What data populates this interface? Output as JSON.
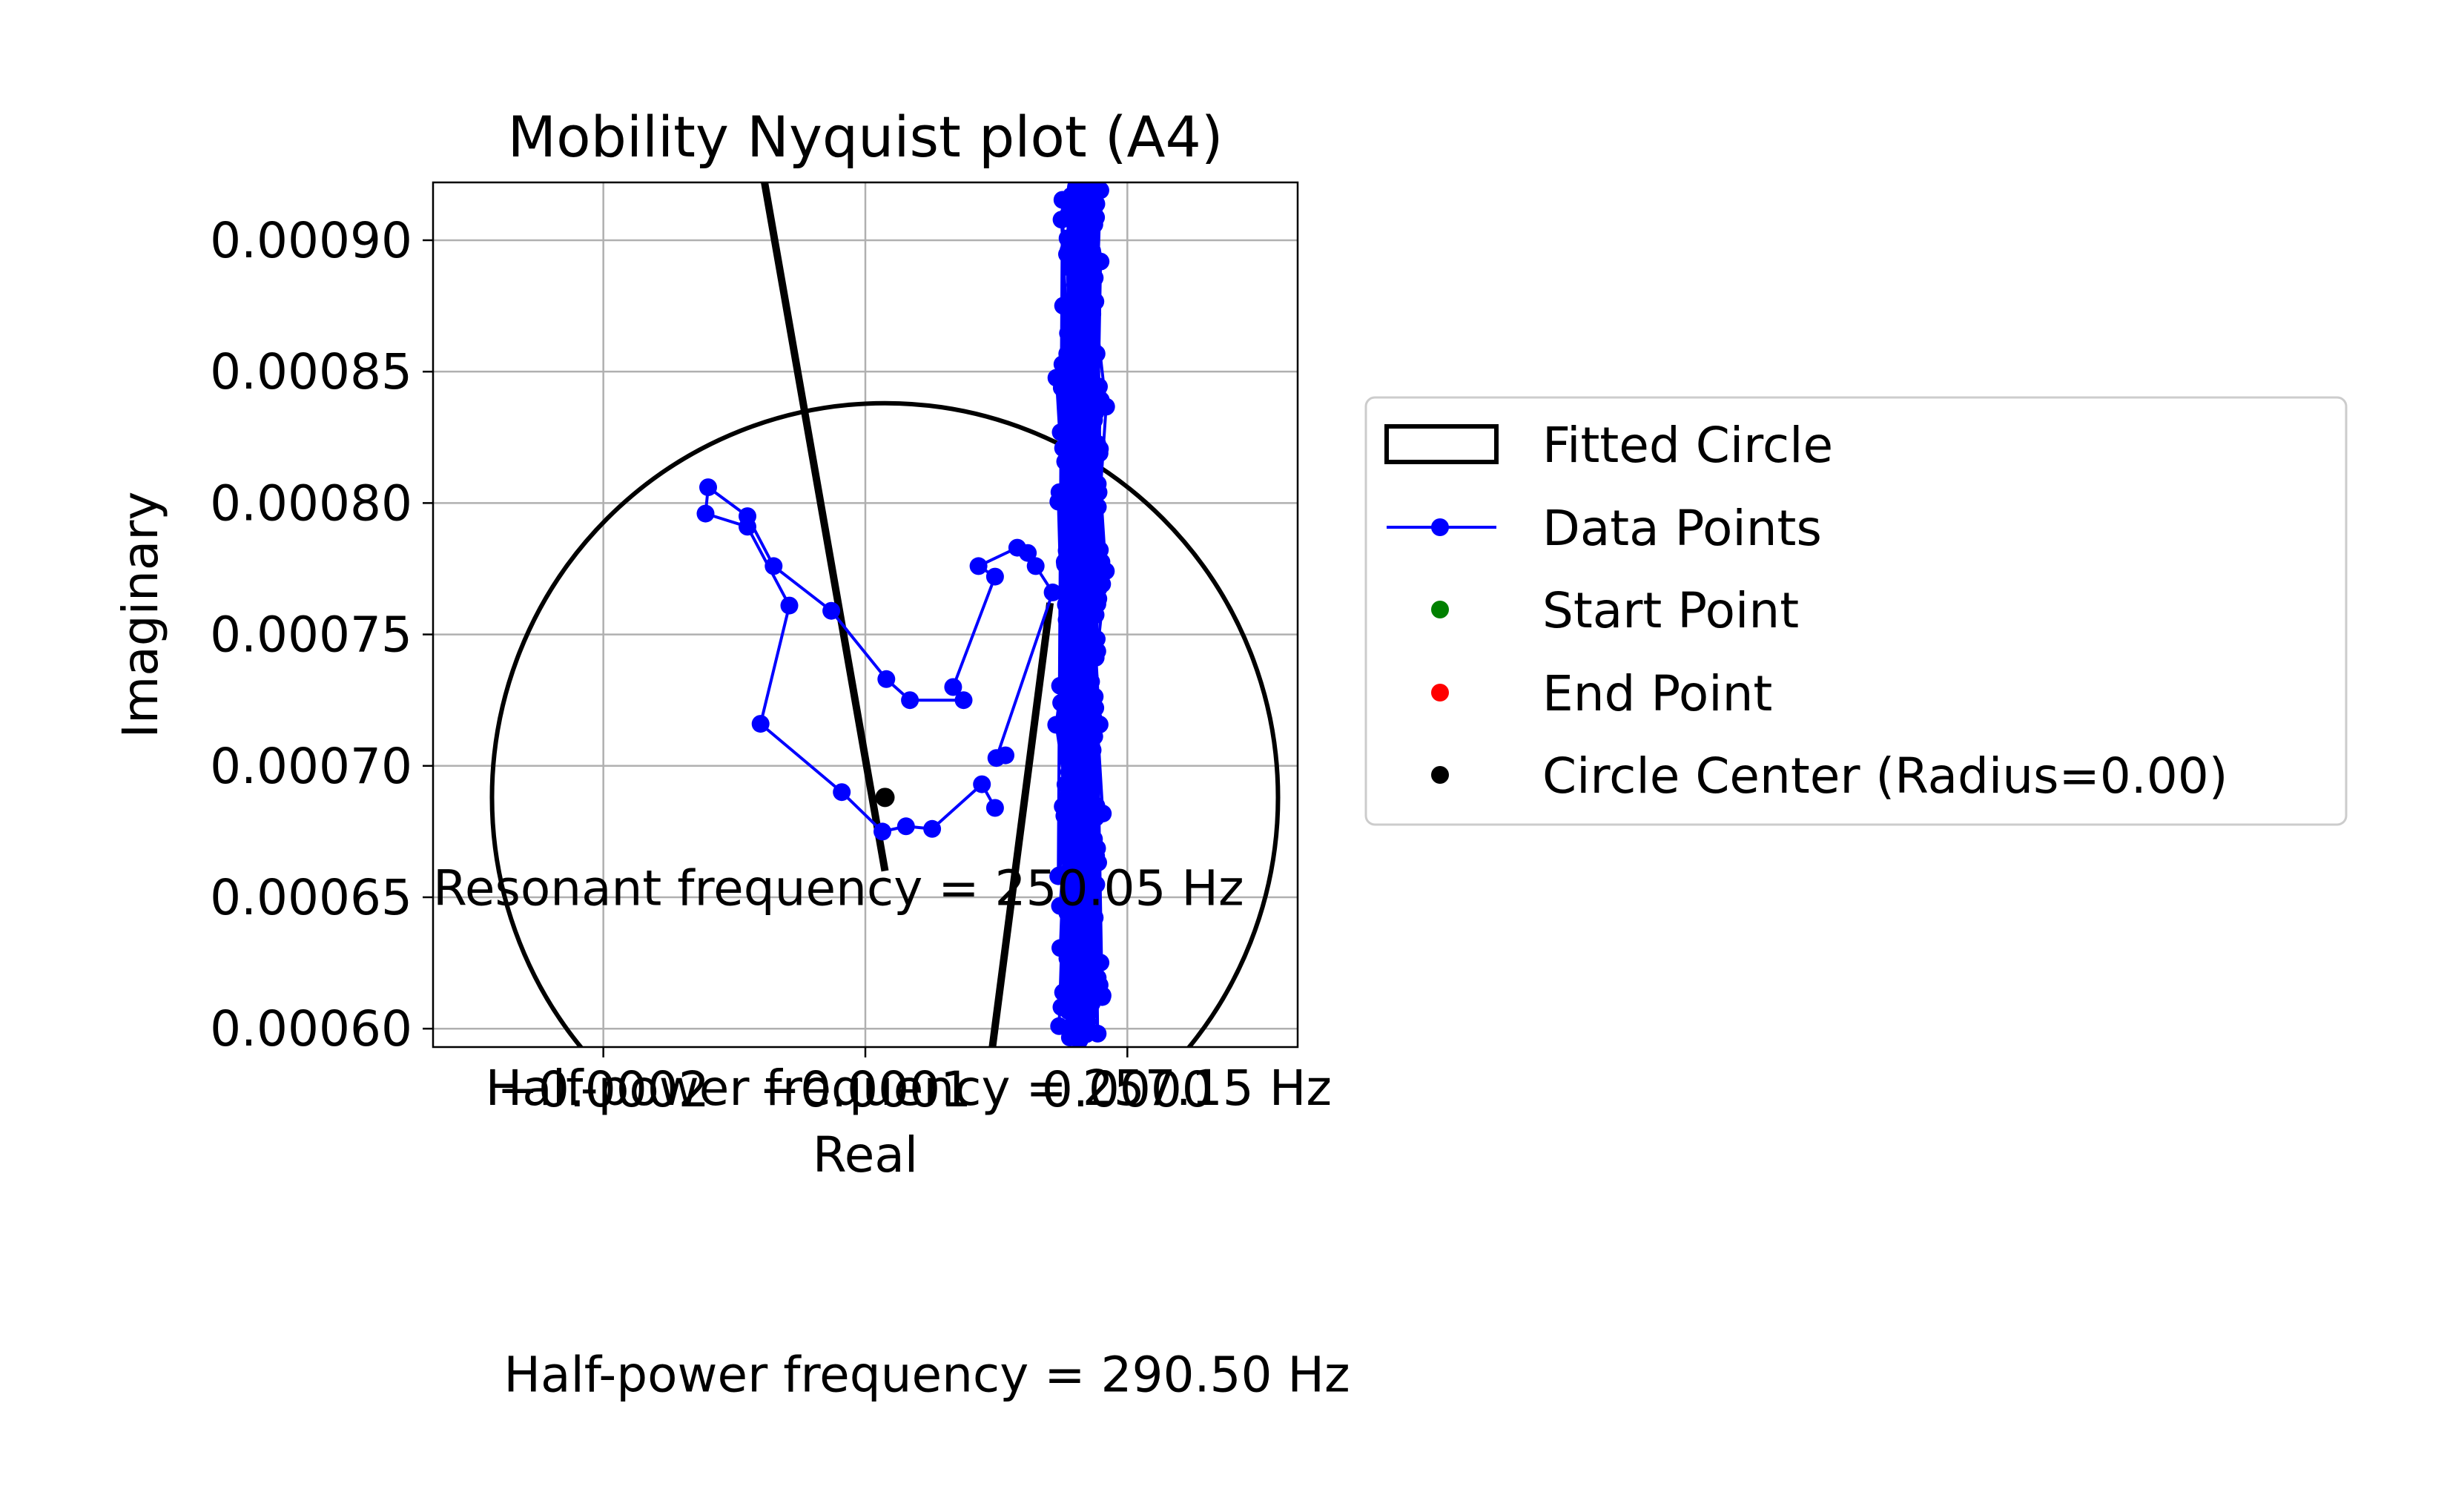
{
  "chart_data": {
    "type": "scatter",
    "title": "Mobility Nyquist plot (A4)",
    "xlabel": "Real",
    "ylabel": "Imaginary",
    "xlim": [
      -0.000265,
      6.5e-05
    ],
    "ylim": [
      0.000593,
      0.000922
    ],
    "x_ticks": [
      -0.0002,
      -0.0001,
      0.0
    ],
    "x_tick_labels": [
      "−0.0002",
      "−0.0001",
      "0.0000"
    ],
    "y_ticks": [
      0.0006,
      0.00065,
      0.0007,
      0.00075,
      0.0008,
      0.00085,
      0.0009
    ],
    "y_tick_labels": [
      "0.00060",
      "0.00065",
      "0.00070",
      "0.00075",
      "0.00080",
      "0.00085",
      "0.00090"
    ],
    "grid": true,
    "legend_position": "outside-right",
    "legend": [
      {
        "label": "Fitted Circle",
        "kind": "patch"
      },
      {
        "label": "Data Points",
        "kind": "line-marker"
      },
      {
        "label": "Start Point",
        "kind": "marker"
      },
      {
        "label": "End Point",
        "kind": "marker"
      },
      {
        "label": "Circle Center (Radius=0.00)",
        "kind": "marker"
      }
    ],
    "colors": {
      "data": "#0000ff",
      "circle": "#000000",
      "start": "#008000",
      "end": "#ff0000",
      "center": "#000000",
      "grid": "#b0b0b0"
    },
    "circle": {
      "center": [
        -9.25e-05,
        0.000688
      ],
      "radius": 0.00015
    },
    "center_point": [
      -9.25e-05,
      0.000688
    ],
    "lines": [
      {
        "x": [
          -0.000139,
          -9.25e-05
        ],
        "y": [
          0.000925,
          0.00066
        ]
      },
      {
        "x": [
          -5.15e-05,
          -2.95e-05
        ],
        "y": [
          0.000593,
          0.000762
        ]
      }
    ],
    "loop_series": {
      "name": "Data Points",
      "x": [
        -5.05e-05,
        -5.55e-05,
        -7.45e-05,
        -8.45e-05,
        -9.35e-05,
        -0.000109,
        -0.00014,
        -0.000129,
        -0.000145,
        -0.000161,
        -0.00016,
        -0.000145,
        -0.000135,
        -0.000113,
        -9.2e-05,
        -8.3e-05,
        -6.25e-05,
        -6.65e-05,
        -5.05e-05,
        -5.68e-05,
        -4.2e-05,
        -3.8e-05,
        -3.5e-05,
        -2.85e-05,
        -5e-05,
        -4.65e-05
      ],
      "y": [
        0.000684,
        0.000693,
        0.000676,
        0.000677,
        0.000675,
        0.00069,
        0.000716,
        0.000761,
        0.000791,
        0.000796,
        0.000806,
        0.000795,
        0.000776,
        0.000759,
        0.000733,
        0.000725,
        0.000725,
        0.00073,
        0.000772,
        0.000776,
        0.000783,
        0.000781,
        0.000776,
        0.000766,
        0.000703,
        0.000704
      ]
    },
    "cloud_series": {
      "name": "Data Points",
      "x_center": -1.75e-05,
      "x_spread": 1.1e-05,
      "y_range": [
        0.000595,
        0.000922
      ],
      "count": 520
    },
    "annotations": [
      {
        "text": "Resonant frequency = 250.05 Hz",
        "x": -0.000265,
        "y": 0.000647
      },
      {
        "text": "Half-power frequency = 257.15 Hz",
        "x": -0.000245,
        "y": 0.000571
      },
      {
        "text": "Half-power frequency = 290.50 Hz",
        "x": -0.000238,
        "y": 0.000462
      }
    ]
  }
}
